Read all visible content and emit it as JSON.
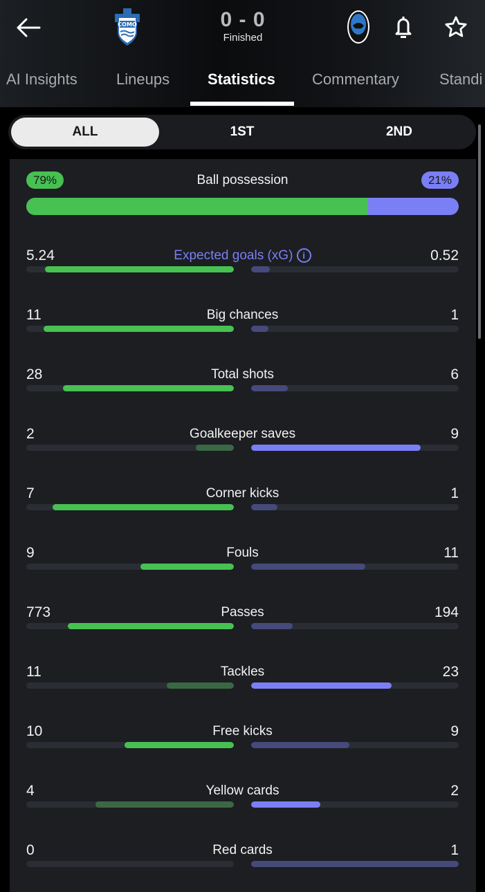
{
  "header": {
    "home_team_crest": "COMO 1907",
    "away_team_crest": "Atalanta 1907",
    "score": "0 - 0",
    "status": "Finished",
    "icons": {
      "back": "arrow-left-icon",
      "notify": "bell-icon",
      "favorite": "star-icon"
    }
  },
  "tabs": [
    {
      "label": "AI Insights",
      "active": false
    },
    {
      "label": "Lineups",
      "active": false
    },
    {
      "label": "Statistics",
      "active": true
    },
    {
      "label": "Commentary",
      "active": false
    },
    {
      "label": "Standi",
      "active": false
    }
  ],
  "period_filter": [
    {
      "label": "ALL",
      "active": true
    },
    {
      "label": "1ST",
      "active": false
    },
    {
      "label": "2ND",
      "active": false
    }
  ],
  "colors": {
    "home": "#47c152",
    "away": "#7b7ff5",
    "home_dim": "#3b6844",
    "away_dim": "#454a7a",
    "track": "#2a2d33"
  },
  "possession": {
    "title": "Ball possession",
    "home": "79%",
    "away": "21%",
    "home_pct": 79
  },
  "stats": [
    {
      "title": "Expected goals (xG)",
      "home": "5.24",
      "away": "0.52",
      "better": "home",
      "info": true
    },
    {
      "title": "Big chances",
      "home": "11",
      "away": "1",
      "better": "home"
    },
    {
      "title": "Total shots",
      "home": "28",
      "away": "6",
      "better": "home"
    },
    {
      "title": "Goalkeeper saves",
      "home": "2",
      "away": "9",
      "better": "away"
    },
    {
      "title": "Corner kicks",
      "home": "7",
      "away": "1",
      "better": "home"
    },
    {
      "title": "Fouls",
      "home": "9",
      "away": "11",
      "better": "home"
    },
    {
      "title": "Passes",
      "home": "773",
      "away": "194",
      "better": "home"
    },
    {
      "title": "Tackles",
      "home": "11",
      "away": "23",
      "better": "away"
    },
    {
      "title": "Free kicks",
      "home": "10",
      "away": "9",
      "better": "home"
    },
    {
      "title": "Yellow cards",
      "home": "4",
      "away": "2",
      "better": "away"
    },
    {
      "title": "Red cards",
      "home": "0",
      "away": "1",
      "better": "home"
    }
  ]
}
